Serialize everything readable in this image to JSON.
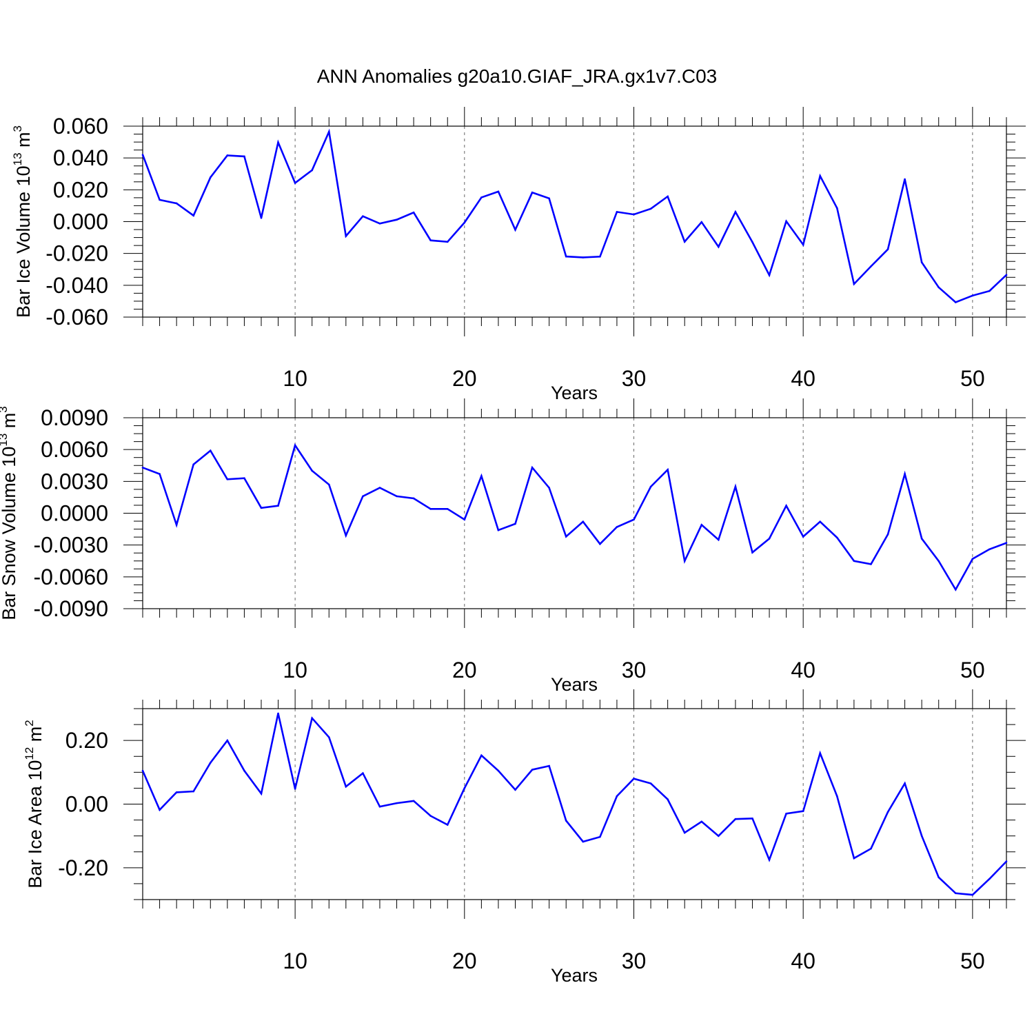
{
  "page_title": "ANN Anomalies g20a10.GIAF_JRA.gx1v7.C03",
  "line_color": "#0000ff",
  "chart_data": [
    {
      "type": "line",
      "ylabel": "Bar Ice Volume 10",
      "ylabel_exp": "13",
      "ylabel_unit": " m",
      "ylabel_unit_exp": "3",
      "xlabel": "Years",
      "xlim": [
        1,
        52
      ],
      "ylim": [
        -0.06,
        0.06
      ],
      "xticks": [
        10,
        20,
        30,
        40,
        50
      ],
      "xtick_labels": [
        "10",
        "20",
        "30",
        "40",
        "50"
      ],
      "yticks": [
        -0.06,
        -0.04,
        -0.02,
        0.0,
        0.02,
        0.04,
        0.06
      ],
      "ytick_labels": [
        "-0.060",
        "-0.040",
        "-0.020",
        "0.000",
        "0.020",
        "0.040",
        "0.060"
      ],
      "grid_x": true,
      "x": [
        1,
        2,
        3,
        4,
        5,
        6,
        7,
        8,
        9,
        10,
        11,
        12,
        13,
        14,
        15,
        16,
        17,
        18,
        19,
        20,
        21,
        22,
        23,
        24,
        25,
        26,
        27,
        28,
        29,
        30,
        31,
        32,
        33,
        34,
        35,
        36,
        37,
        38,
        39,
        40,
        41,
        42,
        43,
        44,
        45,
        46,
        47,
        48,
        49,
        50,
        51,
        52
      ],
      "values": [
        0.042,
        0.0137,
        0.0115,
        0.0038,
        0.0278,
        0.0416,
        0.041,
        0.0023,
        0.0498,
        0.0243,
        0.0323,
        0.0565,
        -0.0091,
        0.0034,
        -0.0012,
        0.0012,
        0.0057,
        -0.0118,
        -0.0127,
        -0.0006,
        0.0152,
        0.0189,
        -0.0051,
        0.0183,
        0.0146,
        -0.0219,
        -0.0225,
        -0.022,
        0.0061,
        0.0045,
        0.0081,
        0.0158,
        -0.0126,
        -0.0003,
        -0.0158,
        0.0061,
        -0.0129,
        -0.0336,
        0.0002,
        -0.0145,
        0.0287,
        0.0085,
        -0.0392,
        -0.0281,
        -0.0174,
        0.0267,
        -0.0256,
        -0.0413,
        -0.0507,
        -0.0465,
        -0.0436,
        -0.0335
      ]
    },
    {
      "type": "line",
      "ylabel": "Bar Snow Volume 10",
      "ylabel_exp": "13",
      "ylabel_unit": " m",
      "ylabel_unit_exp": "3",
      "xlabel": "Years",
      "xlim": [
        1,
        52
      ],
      "ylim": [
        -0.009,
        0.009
      ],
      "xticks": [
        10,
        20,
        30,
        40,
        50
      ],
      "xtick_labels": [
        "10",
        "20",
        "30",
        "40",
        "50"
      ],
      "yticks": [
        -0.009,
        -0.006,
        -0.003,
        0.0,
        0.003,
        0.006,
        0.009
      ],
      "ytick_labels": [
        "-0.0090",
        "-0.0060",
        "-0.0030",
        "0.0000",
        "0.0030",
        "0.0060",
        "0.0090"
      ],
      "grid_x": true,
      "x": [
        1,
        2,
        3,
        4,
        5,
        6,
        7,
        8,
        9,
        10,
        11,
        12,
        13,
        14,
        15,
        16,
        17,
        18,
        19,
        20,
        21,
        22,
        23,
        24,
        25,
        26,
        27,
        28,
        29,
        30,
        31,
        32,
        33,
        34,
        35,
        36,
        37,
        38,
        39,
        40,
        41,
        42,
        43,
        44,
        45,
        46,
        47,
        48,
        49,
        50,
        51,
        52
      ],
      "values": [
        0.0043,
        0.0037,
        -0.0011,
        0.0046,
        0.0059,
        0.0032,
        0.0033,
        0.0005,
        0.0007,
        0.0064,
        0.004,
        0.0027,
        -0.0021,
        0.0016,
        0.0024,
        0.0016,
        0.0014,
        0.0004,
        0.0004,
        -0.0006,
        0.0035,
        -0.0016,
        -0.001,
        0.0043,
        0.0024,
        -0.0022,
        -0.0008,
        -0.0029,
        -0.0013,
        -0.0006,
        0.0025,
        0.0041,
        -0.0045,
        -0.0011,
        -0.0025,
        0.0025,
        -0.0037,
        -0.0024,
        0.0007,
        -0.0022,
        -0.0008,
        -0.0023,
        -0.0045,
        -0.0048,
        -0.002,
        0.0037,
        -0.0024,
        -0.0045,
        -0.0072,
        -0.0043,
        -0.0034,
        -0.0028
      ]
    },
    {
      "type": "line",
      "ylabel": "Bar Ice Area 10",
      "ylabel_exp": "12",
      "ylabel_unit": " m",
      "ylabel_unit_exp": "2",
      "xlabel": "Years",
      "xlim": [
        1,
        52
      ],
      "ylim": [
        -0.3,
        0.3
      ],
      "xticks": [
        10,
        20,
        30,
        40,
        50
      ],
      "xtick_labels": [
        "10",
        "20",
        "30",
        "40",
        "50"
      ],
      "yticks": [
        -0.2,
        0.0,
        0.2
      ],
      "ytick_labels": [
        "-0.20",
        "0.00",
        "0.20"
      ],
      "grid_x": true,
      "x": [
        1,
        2,
        3,
        4,
        5,
        6,
        7,
        8,
        9,
        10,
        11,
        12,
        13,
        14,
        15,
        16,
        17,
        18,
        19,
        20,
        21,
        22,
        23,
        24,
        25,
        26,
        27,
        28,
        29,
        30,
        31,
        32,
        33,
        34,
        35,
        36,
        37,
        38,
        39,
        40,
        41,
        42,
        43,
        44,
        45,
        46,
        47,
        48,
        49,
        50,
        51,
        52
      ],
      "values": [
        0.105,
        -0.018,
        0.037,
        0.04,
        0.13,
        0.2,
        0.105,
        0.033,
        0.285,
        0.048,
        0.27,
        0.21,
        0.055,
        0.097,
        -0.008,
        0.003,
        0.01,
        -0.037,
        -0.065,
        0.05,
        0.153,
        0.105,
        0.045,
        0.108,
        0.12,
        -0.052,
        -0.118,
        -0.103,
        0.025,
        0.08,
        0.065,
        0.015,
        -0.09,
        -0.055,
        -0.1,
        -0.047,
        -0.045,
        -0.175,
        -0.03,
        -0.022,
        0.16,
        0.025,
        -0.17,
        -0.14,
        -0.025,
        0.065,
        -0.1,
        -0.23,
        -0.28,
        -0.285,
        -0.235,
        -0.18
      ]
    }
  ]
}
